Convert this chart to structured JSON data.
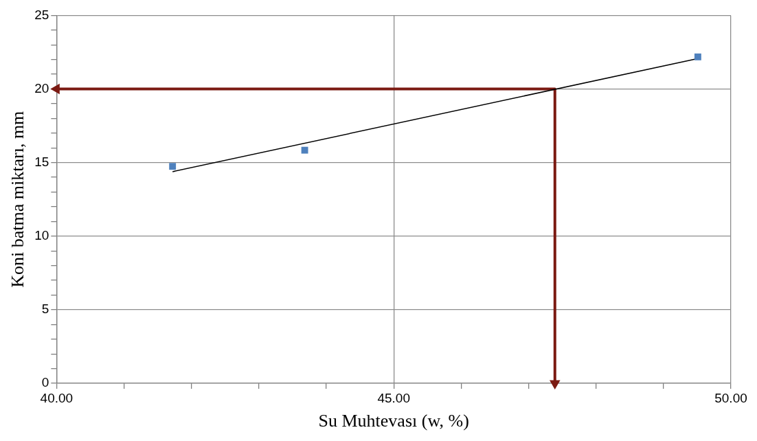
{
  "chart_data": {
    "type": "scatter",
    "xlabel": "Su Muhtevası (w, %)",
    "ylabel": "Koni batma miktarı, mm",
    "xlim": [
      40,
      50
    ],
    "xticks": [
      {
        "value": 40,
        "label": "40.00"
      },
      {
        "value": 41,
        "label": null
      },
      {
        "value": 42,
        "label": null
      },
      {
        "value": 43,
        "label": null
      },
      {
        "value": 44,
        "label": null
      },
      {
        "value": 45,
        "label": "45.00"
      },
      {
        "value": 46,
        "label": null
      },
      {
        "value": 47,
        "label": null
      },
      {
        "value": 48,
        "label": null
      },
      {
        "value": 49,
        "label": null
      },
      {
        "value": 50,
        "label": "50.00"
      }
    ],
    "ylim": [
      0,
      25
    ],
    "yticks": [
      0,
      {
        "value": 1,
        "label": null
      },
      {
        "value": 2,
        "label": null
      },
      {
        "value": 3,
        "label": null
      },
      {
        "value": 4,
        "label": null
      },
      5,
      {
        "value": 6,
        "label": null
      },
      {
        "value": 7,
        "label": null
      },
      {
        "value": 8,
        "label": null
      },
      {
        "value": 9,
        "label": null
      },
      10,
      {
        "value": 11,
        "label": null
      },
      {
        "value": 12,
        "label": null
      },
      {
        "value": 13,
        "label": null
      },
      {
        "value": 14,
        "label": null
      },
      15,
      {
        "value": 16,
        "label": null
      },
      {
        "value": 17,
        "label": null
      },
      {
        "value": 18,
        "label": null
      },
      {
        "value": 19,
        "label": null
      },
      20,
      {
        "value": 21,
        "label": null
      },
      {
        "value": 22,
        "label": null
      },
      {
        "value": 23,
        "label": null
      },
      {
        "value": 24,
        "label": null
      },
      25
    ],
    "grid": true,
    "legend": false,
    "series": [
      {
        "marker": "square",
        "color": "#4f81bd",
        "x": [
          41.72,
          43.68,
          49.51
        ],
        "values": [
          14.74,
          15.84,
          22.18
        ]
      },
      {
        "type": "line",
        "marker": "none",
        "color": "#000000",
        "x": [
          41.72,
          49.51
        ],
        "values": [
          14.38,
          22.07
        ]
      },
      {
        "type": "line",
        "color": "#7b1a12",
        "x": [
          40,
          47.39,
          47.39
        ],
        "values": [
          20,
          20,
          0
        ]
      }
    ]
  }
}
